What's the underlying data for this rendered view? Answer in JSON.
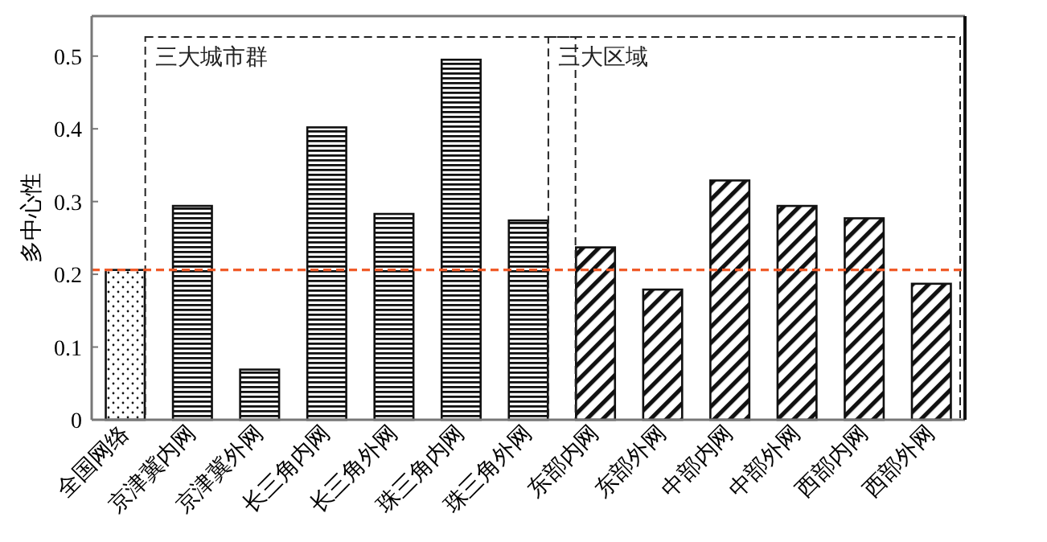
{
  "chart_data": {
    "type": "bar",
    "ylabel": "多中心性",
    "categories": [
      "全国网络",
      "京津冀内网",
      "京津冀外网",
      "长三角内网",
      "长三角外网",
      "珠三角内网",
      "珠三角外网",
      "东部内网",
      "东部外网",
      "中部内网",
      "中部外网",
      "西部内网",
      "西部外网"
    ],
    "values": [
      0.206,
      0.294,
      0.069,
      0.402,
      0.283,
      0.495,
      0.274,
      0.237,
      0.179,
      0.329,
      0.294,
      0.277,
      0.187
    ],
    "color": "#111111",
    "ylim": [
      0,
      0.555
    ],
    "yticks": [
      0,
      0.1,
      0.2,
      0.3,
      0.4,
      0.5
    ],
    "grid": false,
    "ref_lines": [
      {
        "axis": "y",
        "value": 0.206,
        "color": "#f05a28",
        "line_style": "dashed"
      }
    ],
    "annotations": [
      "三大城市群",
      "三大区域"
    ]
  }
}
